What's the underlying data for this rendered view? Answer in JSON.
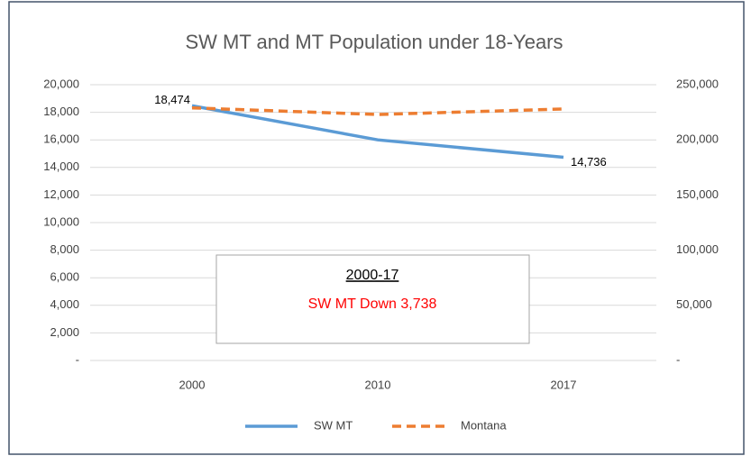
{
  "chart_data": {
    "type": "line",
    "title": "SW MT and MT Population under 18-Years",
    "categories": [
      "2000",
      "2010",
      "2017"
    ],
    "series": [
      {
        "name": "SW MT",
        "color": "#5b9bd5",
        "dashed": false,
        "values": [
          18474,
          16000,
          14736
        ],
        "value_labels": [
          "18,474",
          null,
          "14,736"
        ]
      },
      {
        "name": "Montana",
        "color": "#ed7d31",
        "dashed": true,
        "axis": "y2",
        "values": [
          229000,
          223000,
          228000
        ]
      }
    ],
    "ylim": [
      0,
      20000
    ],
    "yticks": [
      {
        "value": 0,
        "label": "-"
      },
      {
        "value": 2000,
        "label": "2,000"
      },
      {
        "value": 4000,
        "label": "4,000"
      },
      {
        "value": 6000,
        "label": "6,000"
      },
      {
        "value": 8000,
        "label": "8,000"
      },
      {
        "value": 10000,
        "label": "10,000"
      },
      {
        "value": 12000,
        "label": "12,000"
      },
      {
        "value": 14000,
        "label": "14,000"
      },
      {
        "value": 16000,
        "label": "16,000"
      },
      {
        "value": 18000,
        "label": "18,000"
      },
      {
        "value": 20000,
        "label": "20,000"
      }
    ],
    "y2lim": [
      0,
      250000
    ],
    "y2ticks": [
      {
        "value": 0,
        "label": "-"
      },
      {
        "value": 50000,
        "label": "50,000"
      },
      {
        "value": 100000,
        "label": "100,000"
      },
      {
        "value": 150000,
        "label": "150,000"
      },
      {
        "value": 200000,
        "label": "200,000"
      },
      {
        "value": 250000,
        "label": "250,000"
      }
    ],
    "grid": true,
    "legend": "bottom",
    "annotations": [
      "2000-17",
      "SW MT Down 3,738"
    ]
  }
}
